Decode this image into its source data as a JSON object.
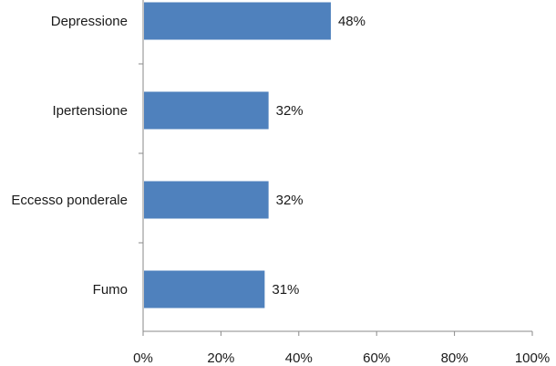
{
  "chart_data": {
    "type": "bar",
    "orientation": "horizontal",
    "categories": [
      "Depressione",
      "Ipertensione",
      "Eccesso ponderale",
      "Fumo"
    ],
    "values": [
      48,
      32,
      32,
      31
    ],
    "value_labels": [
      "48%",
      "32%",
      "32%",
      "31%"
    ],
    "xlim": [
      0,
      100
    ],
    "x_ticks": [
      0,
      20,
      40,
      60,
      80,
      100
    ],
    "x_tick_labels": [
      "0%",
      "20%",
      "40%",
      "60%",
      "80%",
      "100%"
    ],
    "title": "",
    "xlabel": "",
    "ylabel": "",
    "grid": false,
    "bar_color": "#4f81bd",
    "axis_color": "#8a8a8a"
  }
}
